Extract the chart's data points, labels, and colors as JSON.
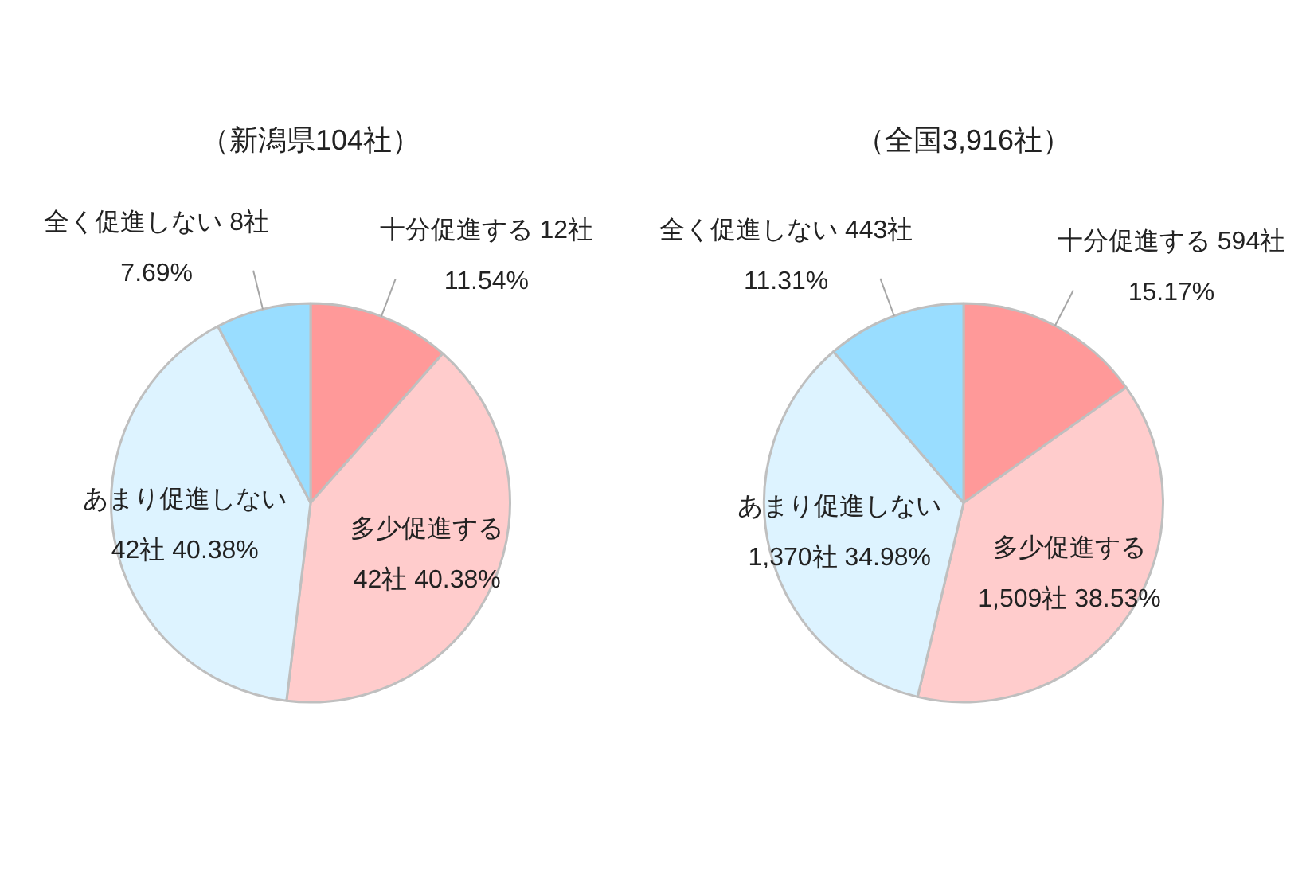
{
  "chart_data": [
    {
      "type": "pie",
      "title": "（新潟県104社）",
      "categories": [
        "十分促進する",
        "多少促進する",
        "あまり促進しない",
        "全く促進しない"
      ],
      "values": [
        12,
        42,
        42,
        8
      ],
      "colors": [
        "#ff9999",
        "#ffcccc",
        "#ddf3ff",
        "#99ddff"
      ],
      "value_labels": [
        "12社 11.54%",
        "42社 40.38%",
        "42社 40.38%",
        "8社 7.69%"
      ]
    },
    {
      "type": "pie",
      "title": "（全国3,916社）",
      "categories": [
        "十分促進する",
        "多少促進する",
        "あまり促進しない",
        "全く促進しない"
      ],
      "values": [
        594,
        1509,
        1370,
        443
      ],
      "colors": [
        "#ff9999",
        "#ffcccc",
        "#ddf3ff",
        "#99ddff"
      ],
      "value_labels": [
        "594社 15.17%",
        "1,509社 38.53%",
        "1,370社 34.98%",
        "443社 11.31%"
      ]
    }
  ]
}
